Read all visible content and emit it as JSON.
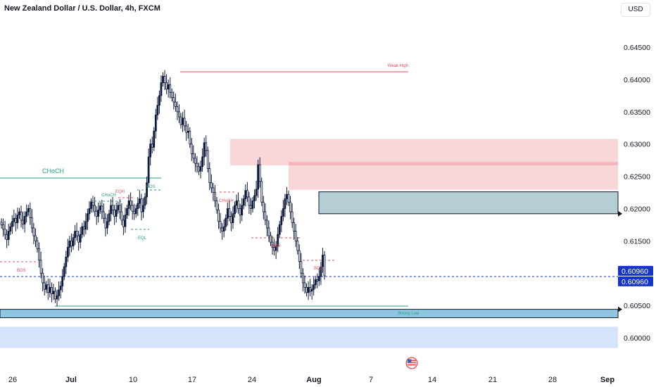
{
  "header": {
    "title": "New Zealand Dollar / U.S. Dollar, 4h, FXCM",
    "currency": "USD"
  },
  "colors": {
    "bull": "#0e1a3d",
    "bear": "#0e1a3d",
    "bullish_structure": "#22a27a",
    "bearish_structure": "#e04b55",
    "supply_zone": "#f9d7d9",
    "demand_zone": "#b5cdd5",
    "lower_zone": "#d5e3fb",
    "strong_low_zone": "#90c6e2",
    "last_price_label": "#1434cb"
  },
  "chart_data": {
    "type": "candlestick",
    "symbol": "NZDUSD",
    "timeframe": "4h",
    "ylim": [
      0.5945,
      0.6535
    ],
    "y_ticks": [
      "0.64500",
      "0.64000",
      "0.63500",
      "0.63000",
      "0.62500",
      "0.62000",
      "0.61500",
      "0.60500",
      "0.60000"
    ],
    "x_ticks": [
      {
        "label": "26",
        "bold": false
      },
      {
        "label": "Jul",
        "bold": true
      },
      {
        "label": "10",
        "bold": false
      },
      {
        "label": "17",
        "bold": false
      },
      {
        "label": "24",
        "bold": false
      },
      {
        "label": "Aug",
        "bold": true
      },
      {
        "label": "7",
        "bold": false
      },
      {
        "label": "14",
        "bold": false
      },
      {
        "label": "21",
        "bold": false
      },
      {
        "label": "28",
        "bold": false
      },
      {
        "label": "Sep",
        "bold": true
      }
    ],
    "last_price_labels": [
      "0.60960",
      "0.60960"
    ],
    "last_price": 0.6096,
    "annotations": [
      {
        "text": "Weak High",
        "kind": "bearish"
      },
      {
        "text": "CHoCH",
        "kind": "bullish"
      },
      {
        "text": "CHoCH",
        "kind": "bullish"
      },
      {
        "text": "EQH",
        "kind": "bearish"
      },
      {
        "text": "BOS",
        "kind": "bullish"
      },
      {
        "text": "EQL",
        "kind": "bullish"
      },
      {
        "text": "BOS",
        "kind": "bearish"
      },
      {
        "text": "CHoCH",
        "kind": "bearish"
      },
      {
        "text": "BOS",
        "kind": "bearish"
      },
      {
        "text": "BOS",
        "kind": "bearish"
      },
      {
        "text": "Strong Low",
        "kind": "bullish"
      }
    ],
    "zones": [
      {
        "name": "supply-zone-upper",
        "top": 0.6308,
        "bottom": 0.6267
      },
      {
        "name": "supply-zone-middle",
        "top": 0.6272,
        "bottom": 0.6229
      },
      {
        "name": "demand-zone",
        "top": 0.6226,
        "bottom": 0.6192
      },
      {
        "name": "strong-low-zone",
        "top": 0.6044,
        "bottom": 0.6031
      },
      {
        "name": "lower-zone",
        "top": 0.6017,
        "bottom": 0.5984
      }
    ],
    "price_path": [
      0.6175,
      0.6168,
      0.616,
      0.6152,
      0.6165,
      0.6172,
      0.618,
      0.6185,
      0.6178,
      0.619,
      0.6195,
      0.6182,
      0.6176,
      0.6188,
      0.6195,
      0.62,
      0.6186,
      0.617,
      0.6158,
      0.615,
      0.6138,
      0.612,
      0.61,
      0.6085,
      0.6075,
      0.6082,
      0.607,
      0.6078,
      0.6068,
      0.6072,
      0.606,
      0.6065,
      0.6074,
      0.608,
      0.6095,
      0.611,
      0.6125,
      0.614,
      0.615,
      0.6142,
      0.6155,
      0.6165,
      0.6158,
      0.6148,
      0.616,
      0.6172,
      0.6168,
      0.618,
      0.6192,
      0.62,
      0.621,
      0.6205,
      0.6196,
      0.6188,
      0.6198,
      0.6204,
      0.6195,
      0.6185,
      0.617,
      0.618,
      0.6192,
      0.6205,
      0.6198,
      0.6188,
      0.6198,
      0.6205,
      0.6195,
      0.6182,
      0.6172,
      0.619,
      0.62,
      0.6212,
      0.6205,
      0.6196,
      0.6192,
      0.62,
      0.6208,
      0.6215,
      0.6195,
      0.6205,
      0.6218,
      0.624,
      0.628,
      0.63,
      0.6295,
      0.632,
      0.6345,
      0.636,
      0.6375,
      0.6395,
      0.6405,
      0.6395,
      0.6385,
      0.6392,
      0.638,
      0.6372,
      0.6365,
      0.6358,
      0.635,
      0.6342,
      0.633,
      0.634,
      0.6328,
      0.6318,
      0.632,
      0.63,
      0.6285,
      0.6278,
      0.627,
      0.6265,
      0.6258,
      0.6265,
      0.628,
      0.6302,
      0.629,
      0.6262,
      0.624,
      0.6232,
      0.6225,
      0.6212,
      0.6198,
      0.618,
      0.617,
      0.6165,
      0.6172,
      0.6185,
      0.62,
      0.6188,
      0.6178,
      0.6192,
      0.6205,
      0.6212,
      0.62,
      0.619,
      0.6205,
      0.6215,
      0.6228,
      0.6218,
      0.6205,
      0.62,
      0.6212,
      0.622,
      0.623,
      0.6268,
      0.6242,
      0.621,
      0.6195,
      0.6182,
      0.617,
      0.6158,
      0.6148,
      0.614,
      0.6135,
      0.6142,
      0.616,
      0.6175,
      0.6188,
      0.62,
      0.6215,
      0.6222,
      0.621,
      0.6195,
      0.6178,
      0.6165,
      0.615,
      0.6135,
      0.6118,
      0.61,
      0.6085,
      0.6078,
      0.607,
      0.6078,
      0.6072,
      0.6075,
      0.6082,
      0.609,
      0.6088,
      0.6095,
      0.611,
      0.6128,
      0.6096
    ]
  }
}
